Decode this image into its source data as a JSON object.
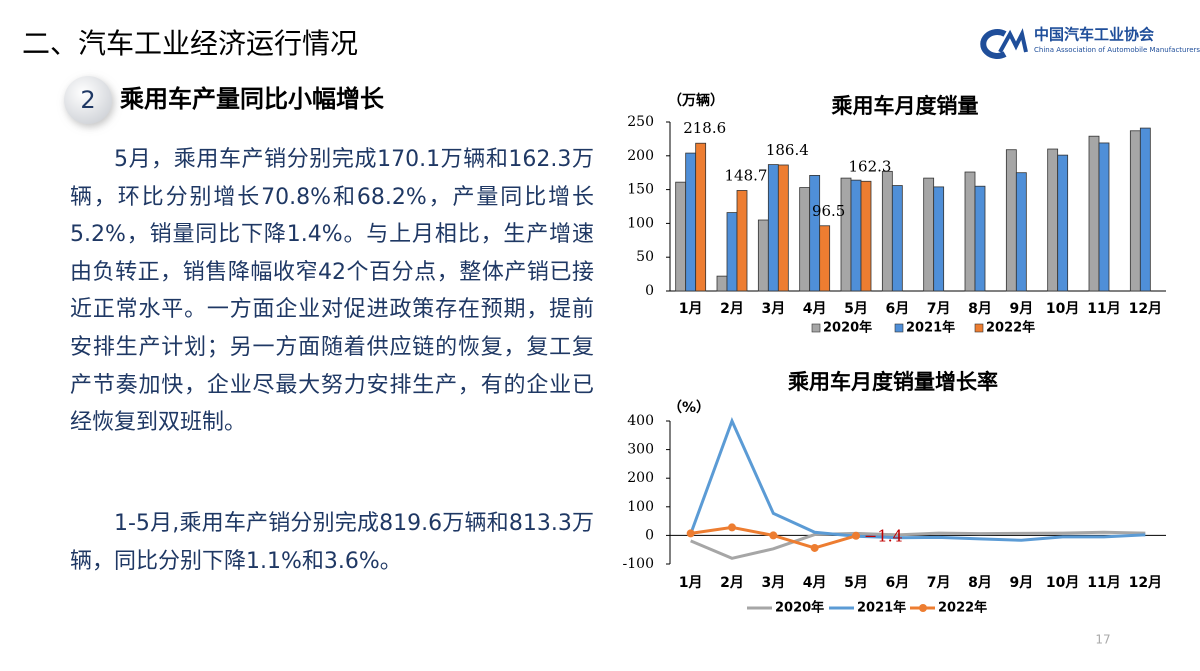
{
  "header": {
    "title": "二、汽车工业经济运行情况",
    "logo_cn": "中国汽车工业协会",
    "logo_en": "China Association of Automobile Manufacturers"
  },
  "section": {
    "number": "2",
    "title": "乘用车产量同比小幅增长"
  },
  "paragraphs": [
    "5月，乘用车产销分别完成170.1万辆和162.3万辆，环比分别增长70.8%和68.2%，产量同比增长5.2%，销量同比下降1.4%。与上月相比，生产增速由负转正，销售降幅收窄42个百分点，整体产销已接近正常水平。一方面企业对促进政策存在预期，提前安排生产计划；另一方面随着供应链的恢复，复工复产节奏加快，企业尽最大努力安排生产，有的企业已经恢复到双班制。",
    "1-5月,乘用车产销分别完成819.6万辆和813.3万辆，同比分别下降1.1%和3.6%。"
  ],
  "page_number": "17",
  "chart_data": [
    {
      "type": "bar",
      "title": "乘用车月度销量",
      "y_label": "（万辆）",
      "categories": [
        "1月",
        "2月",
        "3月",
        "4月",
        "5月",
        "6月",
        "7月",
        "8月",
        "9月",
        "10月",
        "11月",
        "12月"
      ],
      "ylim": [
        0,
        250
      ],
      "yticks": [
        0,
        50,
        100,
        150,
        200,
        250
      ],
      "grid": false,
      "series": [
        {
          "name": "2020年",
          "color": "#a6a6a6",
          "values": [
            161,
            22,
            105,
            153,
            167,
            177,
            167,
            176,
            209,
            210,
            229,
            237
          ]
        },
        {
          "name": "2021年",
          "color": "#4f8fd8",
          "values": [
            204,
            116,
            187,
            171,
            164,
            156,
            154,
            155,
            175,
            201,
            219,
            241
          ]
        },
        {
          "name": "2022年",
          "color": "#ed7d31",
          "data_labels": true,
          "values": [
            218.6,
            148.7,
            186.4,
            96.5,
            162.3,
            null,
            null,
            null,
            null,
            null,
            null,
            null
          ]
        }
      ]
    },
    {
      "type": "line",
      "title": "乘用车月度销量增长率",
      "y_label": "（%）",
      "categories": [
        "1月",
        "2月",
        "3月",
        "4月",
        "5月",
        "6月",
        "7月",
        "8月",
        "9月",
        "10月",
        "11月",
        "12月"
      ],
      "ylim": [
        -100,
        400
      ],
      "yticks": [
        -100,
        0,
        100,
        200,
        300,
        400
      ],
      "grid": false,
      "series": [
        {
          "name": "2020年",
          "color": "#a6a6a6",
          "values": [
            -19,
            -80,
            -47,
            3,
            7,
            2,
            8,
            6,
            7,
            8,
            11,
            8
          ]
        },
        {
          "name": "2021年",
          "color": "#5b9bd5",
          "values": [
            5,
            400,
            77,
            11,
            -3,
            -8,
            -7,
            -12,
            -17,
            -5,
            -5,
            2
          ]
        },
        {
          "name": "2022年",
          "color": "#ed7d31",
          "markers": true,
          "label_color": "#c00000",
          "values": [
            7,
            28,
            0,
            -44,
            -1.4,
            null,
            null,
            null,
            null,
            null,
            null,
            null
          ],
          "value_labels": [
            null,
            null,
            null,
            null,
            "−1.4",
            null,
            null,
            null,
            null,
            null,
            null,
            null
          ]
        }
      ]
    }
  ]
}
